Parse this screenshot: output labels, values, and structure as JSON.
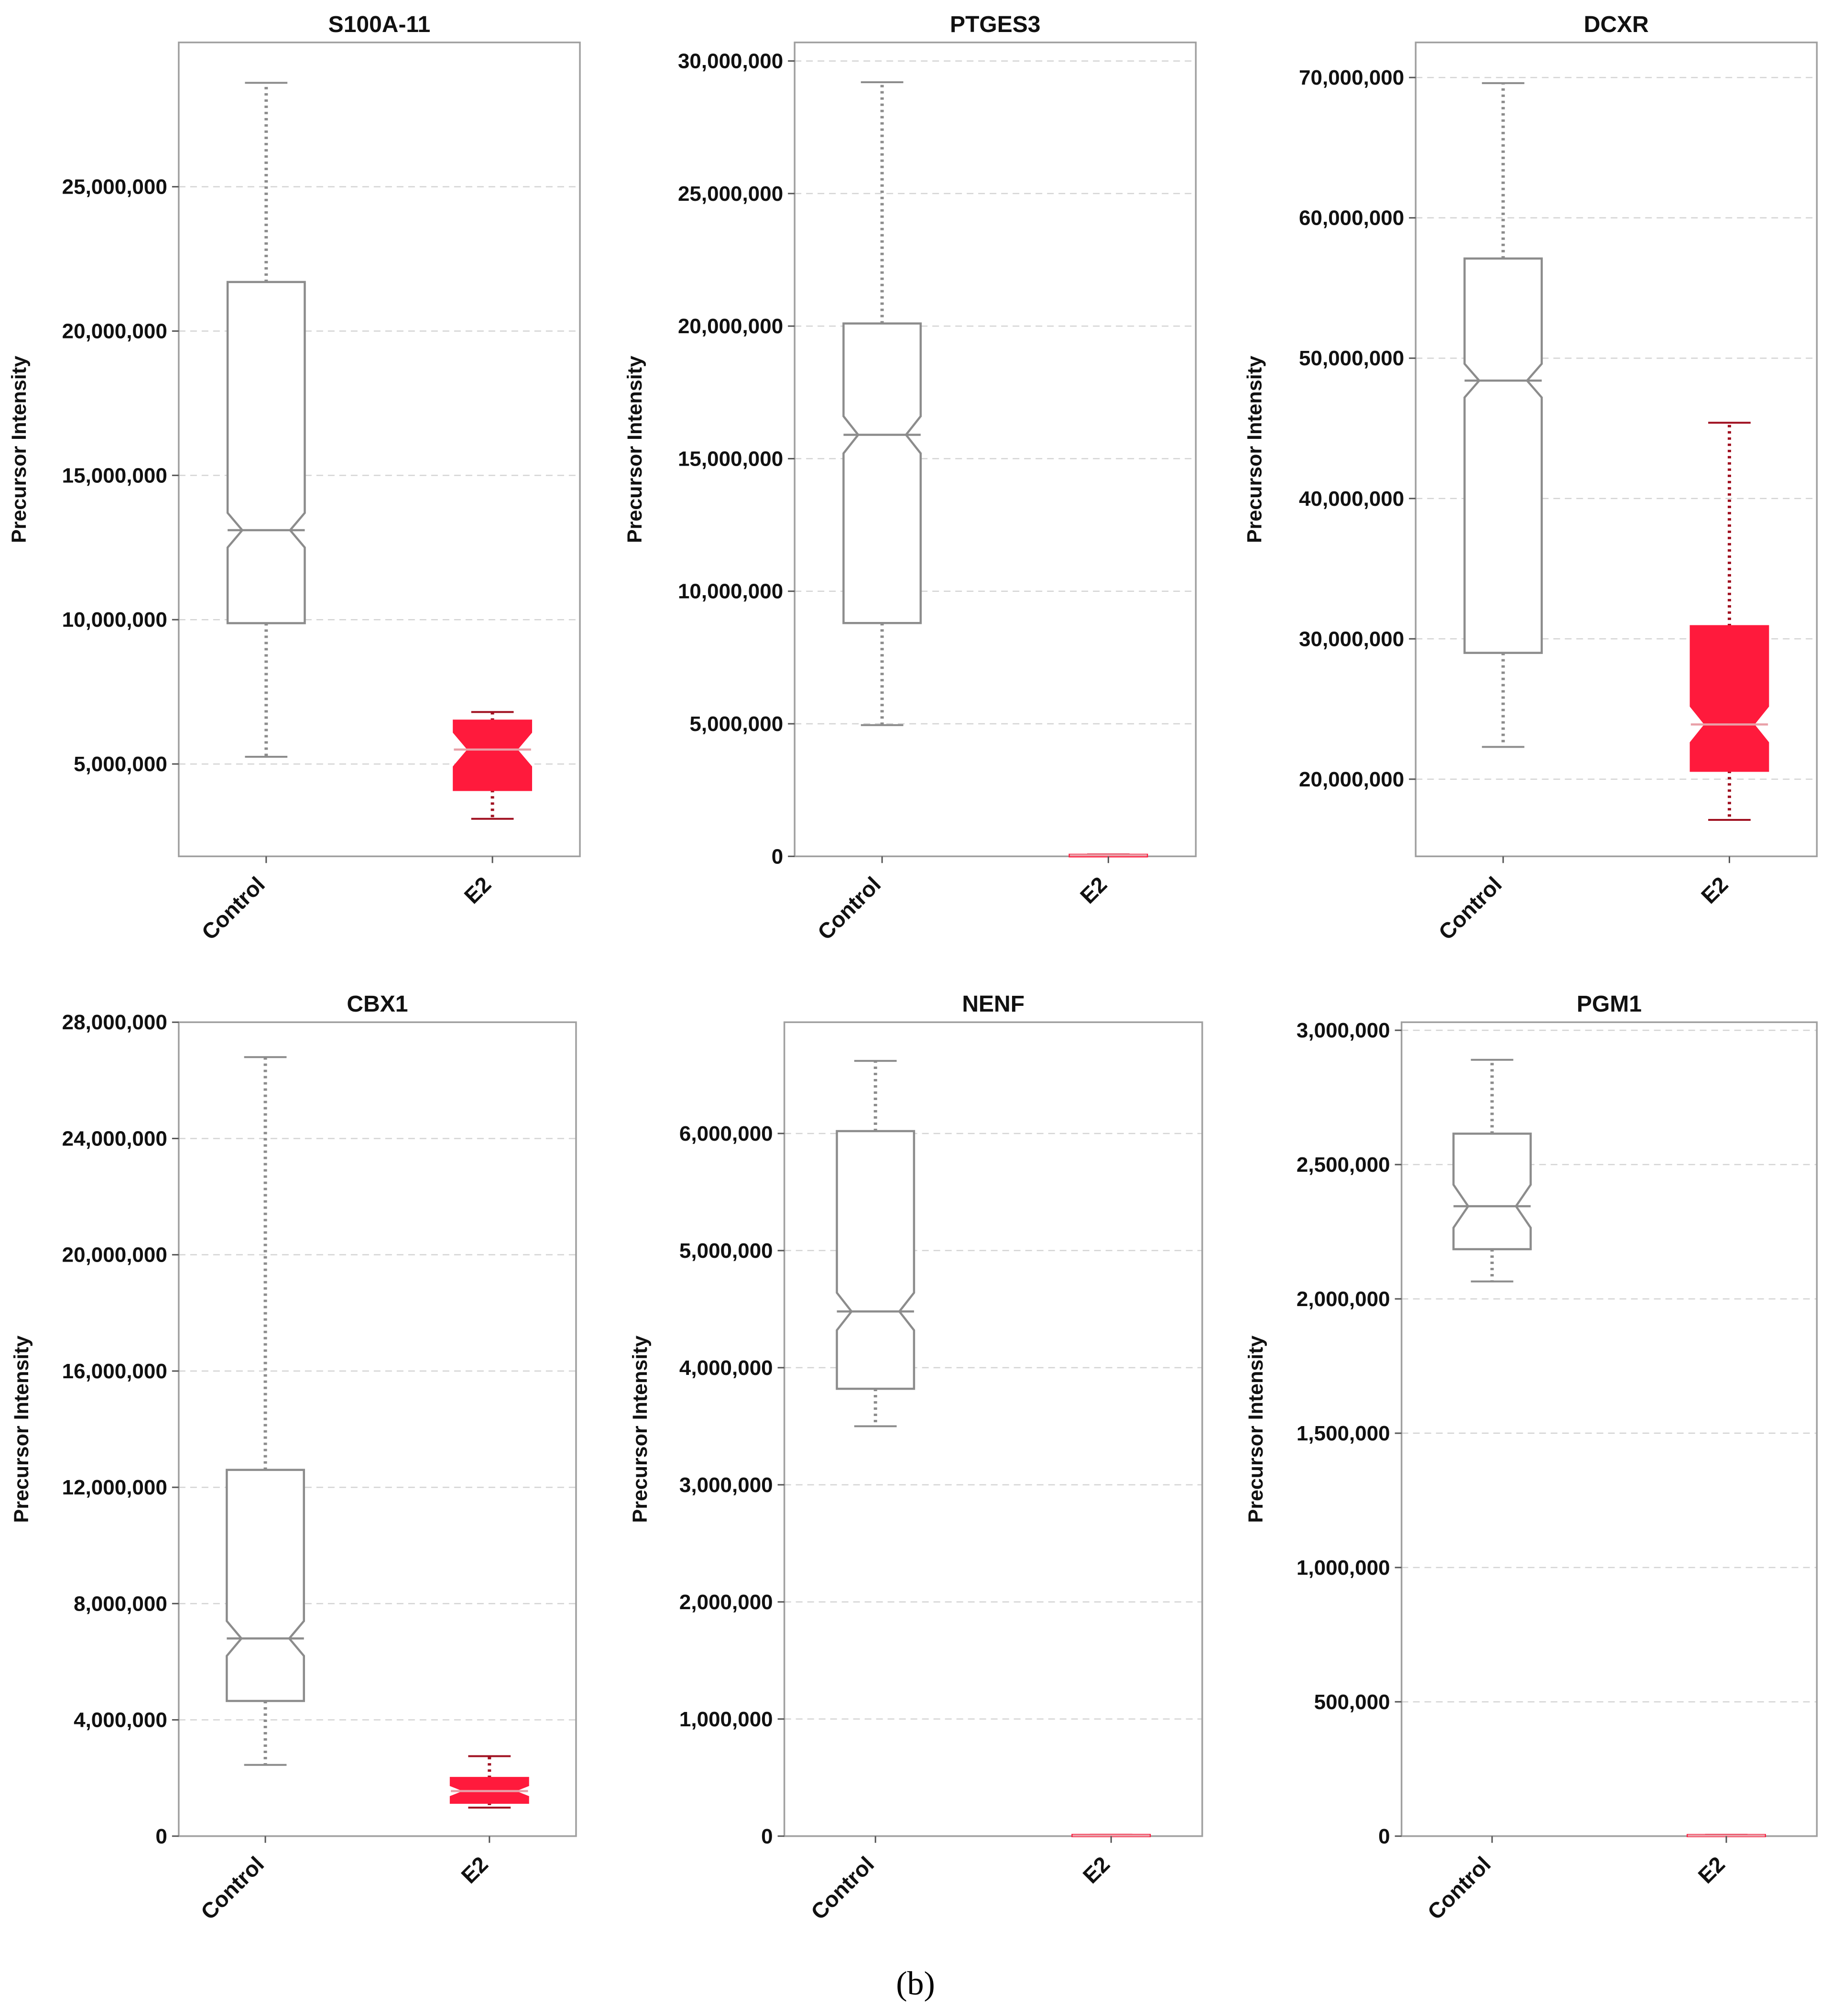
{
  "figure": {
    "caption": "(b)",
    "colors": {
      "control_fill": "#ffffff",
      "control_stroke": "#8c8c8c",
      "e2_fill": "#ff1a3c",
      "e2_whisker": "#a01020",
      "e2_median": "#e8a0a8",
      "grid": "#d4d4d4",
      "frame": "#a0a0a0"
    }
  },
  "chart_data": [
    {
      "type": "boxplot",
      "notched": true,
      "title": "S100A-11",
      "ylabel": "Precursor Intensity",
      "categories": [
        "Control",
        "E2"
      ],
      "ylim": [
        1800000,
        30000000
      ],
      "yticks": [
        5000000,
        10000000,
        15000000,
        20000000,
        25000000
      ],
      "ytick_labels": [
        "5,000,000",
        "10,000,000",
        "15,000,000",
        "20,000,000",
        "25,000,000"
      ],
      "grid": true,
      "boxes": [
        {
          "category": "Control",
          "min": 5250000,
          "q1": 9880000,
          "median": 13100000,
          "q3": 21700000,
          "max": 28600000,
          "notch_low": 12500000,
          "notch_high": 13700000
        },
        {
          "category": "E2",
          "min": 3100000,
          "q1": 4100000,
          "median": 5500000,
          "q3": 6500000,
          "max": 6800000,
          "notch_low": 4900000,
          "notch_high": 6100000
        }
      ]
    },
    {
      "type": "boxplot",
      "notched": true,
      "title": "PTGES3",
      "ylabel": "Precursor Intensity",
      "categories": [
        "Control",
        "E2"
      ],
      "ylim": [
        0,
        30700000
      ],
      "yticks": [
        0,
        5000000,
        10000000,
        15000000,
        20000000,
        25000000,
        30000000
      ],
      "ytick_labels": [
        "0",
        "5,000,000",
        "10,000,000",
        "15,000,000",
        "20,000,000",
        "25,000,000",
        "30,000,000"
      ],
      "grid": true,
      "boxes": [
        {
          "category": "Control",
          "min": 4950000,
          "q1": 8800000,
          "median": 15900000,
          "q3": 20100000,
          "max": 29200000,
          "notch_low": 15200000,
          "notch_high": 16600000
        },
        {
          "category": "E2",
          "min": 0,
          "q1": 0,
          "median": 40000,
          "q3": 60000,
          "max": 70000,
          "notch_low": 30000,
          "notch_high": 50000
        }
      ]
    },
    {
      "type": "boxplot",
      "notched": true,
      "title": "DCXR",
      "ylabel": "Precursor Intensity",
      "categories": [
        "Control",
        "E2"
      ],
      "ylim": [
        14500000,
        72500000
      ],
      "yticks": [
        20000000,
        30000000,
        40000000,
        50000000,
        60000000,
        70000000
      ],
      "ytick_labels": [
        "20,000,000",
        "30,000,000",
        "40,000,000",
        "50,000,000",
        "60,000,000",
        "70,000,000"
      ],
      "grid": true,
      "boxes": [
        {
          "category": "Control",
          "min": 22300000,
          "q1": 29000000,
          "median": 48400000,
          "q3": 57100000,
          "max": 69600000,
          "notch_low": 47200000,
          "notch_high": 49600000
        },
        {
          "category": "E2",
          "min": 17100000,
          "q1": 20600000,
          "median": 23900000,
          "q3": 30900000,
          "max": 45400000,
          "notch_low": 22600000,
          "notch_high": 25200000
        }
      ]
    },
    {
      "type": "boxplot",
      "notched": true,
      "title": "CBX1",
      "ylabel": "Precursor Intensity",
      "categories": [
        "Control",
        "E2"
      ],
      "ylim": [
        0,
        28000000
      ],
      "yticks": [
        0,
        4000000,
        8000000,
        12000000,
        16000000,
        20000000,
        24000000,
        28000000
      ],
      "ytick_labels": [
        "0",
        "4,000,000",
        "8,000,000",
        "12,000,000",
        "16,000,000",
        "20,000,000",
        "24,000,000",
        "28,000,000"
      ],
      "grid": true,
      "boxes": [
        {
          "category": "Control",
          "min": 2450000,
          "q1": 4650000,
          "median": 6800000,
          "q3": 12600000,
          "max": 26800000,
          "notch_low": 6200000,
          "notch_high": 7400000
        },
        {
          "category": "E2",
          "min": 980000,
          "q1": 1150000,
          "median": 1550000,
          "q3": 2000000,
          "max": 2750000,
          "notch_low": 1350000,
          "notch_high": 1750000
        }
      ]
    },
    {
      "type": "boxplot",
      "notched": true,
      "title": "NENF",
      "ylabel": "Precursor Intensity",
      "categories": [
        "Control",
        "E2"
      ],
      "ylim": [
        0,
        6950000
      ],
      "yticks": [
        0,
        1000000,
        2000000,
        3000000,
        4000000,
        5000000,
        6000000
      ],
      "ytick_labels": [
        "0",
        "1,000,000",
        "2,000,000",
        "3,000,000",
        "4,000,000",
        "5,000,000",
        "6,000,000"
      ],
      "grid": true,
      "boxes": [
        {
          "category": "Control",
          "min": 3500000,
          "q1": 3820000,
          "median": 4480000,
          "q3": 6020000,
          "max": 6620000,
          "notch_low": 4320000,
          "notch_high": 4640000
        },
        {
          "category": "E2",
          "min": 0,
          "q1": 0,
          "median": 5000,
          "q3": 10000,
          "max": 12000,
          "notch_low": 3000,
          "notch_high": 7000
        }
      ]
    },
    {
      "type": "boxplot",
      "notched": true,
      "title": "PGM1",
      "ylabel": "Precursor Intensity",
      "categories": [
        "Control",
        "E2"
      ],
      "ylim": [
        0,
        3030000
      ],
      "yticks": [
        0,
        500000,
        1000000,
        1500000,
        2000000,
        2500000,
        3000000
      ],
      "ytick_labels": [
        "0",
        "500,000",
        "1,000,000",
        "1,500,000",
        "2,000,000",
        "2,500,000",
        "3,000,000"
      ],
      "grid": true,
      "boxes": [
        {
          "category": "Control",
          "min": 2065000,
          "q1": 2185000,
          "median": 2345000,
          "q3": 2615000,
          "max": 2890000,
          "notch_low": 2265000,
          "notch_high": 2425000
        },
        {
          "category": "E2",
          "min": 0,
          "q1": 0,
          "median": 2000,
          "q3": 4000,
          "max": 5000,
          "notch_low": 1000,
          "notch_high": 3000
        }
      ]
    }
  ]
}
